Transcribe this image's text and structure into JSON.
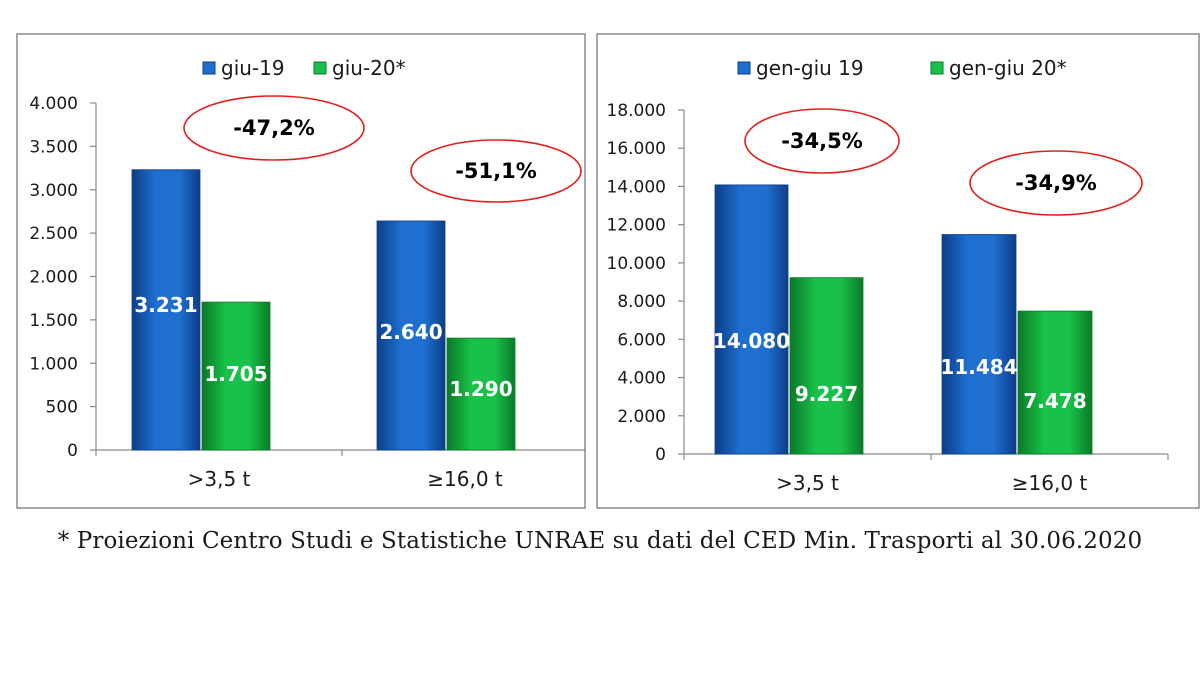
{
  "colors": {
    "series_1": "#1e6fd0",
    "series_1_dark": "#0d3e86",
    "series_2": "#19c049",
    "series_2_dark": "#0a7a27",
    "highlight_ellipse": "#e0201d",
    "axis": "#8a8a8a",
    "panel_border": "#8a8a8a"
  },
  "chart_data": [
    {
      "type": "bar",
      "categories": [
        ">3,5 t",
        "≥16,0 t"
      ],
      "series": [
        {
          "name": "giu-19",
          "values": [
            3231,
            2640
          ],
          "labels": [
            "3.231",
            "2.640"
          ]
        },
        {
          "name": "giu-20*",
          "values": [
            1705,
            1290
          ],
          "labels": [
            "1.705",
            "1.290"
          ]
        }
      ],
      "ylim": [
        0,
        4000
      ],
      "ytick_values": [
        0,
        500,
        1000,
        1500,
        2000,
        2500,
        3000,
        3500,
        4000
      ],
      "yticks": [
        "0",
        "500",
        "1.000",
        "1.500",
        "2.000",
        "2.500",
        "3.000",
        "3.500",
        "4.000"
      ],
      "annotations": [
        "-47,2%",
        "-51,1%"
      ],
      "legend_position": "top",
      "title": "",
      "xlabel": "",
      "ylabel": "",
      "grid": false
    },
    {
      "type": "bar",
      "categories": [
        ">3,5 t",
        "≥16,0 t"
      ],
      "series": [
        {
          "name": "gen-giu 19",
          "values": [
            14080,
            11484
          ],
          "labels": [
            "14.080",
            "11.484"
          ]
        },
        {
          "name": "gen-giu 20*",
          "values": [
            9227,
            7478
          ],
          "labels": [
            "9.227",
            "7.478"
          ]
        }
      ],
      "ylim": [
        0,
        18000
      ],
      "ytick_values": [
        0,
        2000,
        4000,
        6000,
        8000,
        10000,
        12000,
        14000,
        16000,
        18000
      ],
      "yticks": [
        "0",
        "2.000",
        "4.000",
        "6.000",
        "8.000",
        "10.000",
        "12.000",
        "14.000",
        "16.000",
        "18.000"
      ],
      "annotations": [
        "-34,5%",
        "-34,9%"
      ],
      "legend_position": "top",
      "title": "",
      "xlabel": "",
      "ylabel": "",
      "grid": false
    }
  ],
  "footnote": "* Proiezioni Centro Studi e Statistiche UNRAE su dati del CED Min. Trasporti al 30.06.2020"
}
